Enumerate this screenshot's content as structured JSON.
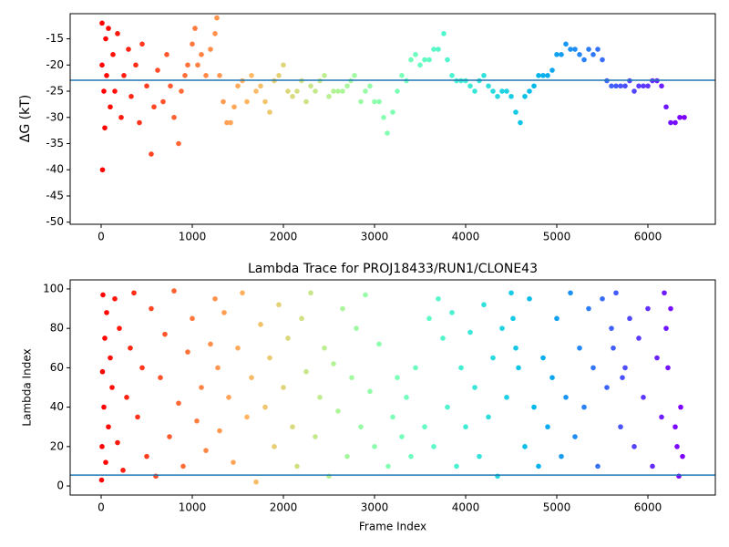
{
  "chart_data": [
    {
      "type": "scatter",
      "ylabel": "ΔG (kT)",
      "colormap": "rainbow_r",
      "xlim": [
        -340,
        6740
      ],
      "ylim": [
        -50.4,
        -10.2
      ],
      "xticks": [
        0,
        1000,
        2000,
        3000,
        4000,
        5000,
        6000
      ],
      "yticks": [
        -50,
        -45,
        -40,
        -35,
        -30,
        -25,
        -20,
        -15
      ],
      "hline": -22.9,
      "hline_color": "#1f77b4",
      "x": [
        10,
        10,
        15,
        30,
        40,
        50,
        60,
        80,
        100,
        130,
        150,
        180,
        220,
        250,
        300,
        330,
        380,
        420,
        450,
        500,
        550,
        580,
        620,
        680,
        720,
        760,
        800,
        850,
        880,
        920,
        950,
        1000,
        1030,
        1060,
        1100,
        1150,
        1200,
        1250,
        1270,
        1300,
        1340,
        1380,
        1420,
        1460,
        1500,
        1550,
        1600,
        1650,
        1700,
        1750,
        1800,
        1850,
        1900,
        1950,
        2000,
        2050,
        2100,
        2150,
        2200,
        2250,
        2300,
        2350,
        2400,
        2450,
        2500,
        2550,
        2600,
        2650,
        2700,
        2740,
        2780,
        2850,
        2900,
        2950,
        3000,
        3050,
        3100,
        3140,
        3200,
        3250,
        3300,
        3350,
        3400,
        3450,
        3500,
        3550,
        3600,
        3650,
        3700,
        3760,
        3800,
        3850,
        3900,
        3950,
        4000,
        4050,
        4100,
        4150,
        4200,
        4250,
        4300,
        4350,
        4400,
        4450,
        4500,
        4550,
        4600,
        4650,
        4700,
        4750,
        4800,
        4850,
        4900,
        4950,
        5000,
        5050,
        5100,
        5150,
        5200,
        5250,
        5300,
        5350,
        5400,
        5450,
        5500,
        5550,
        5600,
        5650,
        5700,
        5750,
        5800,
        5850,
        5900,
        5950,
        6000,
        6050,
        6100,
        6150,
        6200,
        6250,
        6300,
        6350,
        6400
      ],
      "values": [
        -12,
        -20,
        -40,
        -25,
        -32,
        -15,
        -22,
        -13,
        -28,
        -18,
        -25,
        -14,
        -30,
        -22,
        -17,
        -26,
        -20,
        -31,
        -16,
        -24,
        -37,
        -28,
        -21,
        -27,
        -18,
        -24,
        -30,
        -35,
        -25,
        -22,
        -20,
        -16,
        -13,
        -20,
        -18,
        -22,
        -17,
        -14,
        -11,
        -22,
        -27,
        -31,
        -31,
        -28,
        -24,
        -23,
        -27,
        -22,
        -25,
        -24,
        -27,
        -29,
        -23,
        -22,
        -20,
        -25,
        -26,
        -25,
        -23,
        -27,
        -24,
        -25,
        -23,
        -22,
        -26,
        -25,
        -25,
        -25,
        -24,
        -23,
        -22,
        -27,
        -25,
        -24,
        -27,
        -27,
        -30,
        -33,
        -29,
        -25,
        -22,
        -23,
        -19,
        -18,
        -20,
        -19,
        -19,
        -17,
        -17,
        -14,
        -19,
        -22,
        -23,
        -23,
        -23,
        -24,
        -25,
        -23,
        -22,
        -24,
        -25,
        -26,
        -25,
        -25,
        -26,
        -29,
        -31,
        -26,
        -25,
        -24,
        -22,
        -22,
        -22,
        -21,
        -18,
        -18,
        -16,
        -17,
        -17,
        -18,
        -19,
        -17,
        -18,
        -17,
        -19,
        -23,
        -24,
        -24,
        -24,
        -24,
        -23,
        -25,
        -24,
        -24,
        -24,
        -23,
        -23,
        -24,
        -28,
        -31,
        -31,
        -30,
        -30
      ]
    },
    {
      "type": "scatter",
      "title": "Lambda Trace for PROJ18433/RUN1/CLONE43",
      "xlabel": "Frame Index",
      "ylabel": "Lambda Index",
      "colormap": "rainbow_r",
      "xlim": [
        -340,
        6740
      ],
      "ylim": [
        -4.6,
        104.6
      ],
      "xticks": [
        0,
        1000,
        2000,
        3000,
        4000,
        5000,
        6000
      ],
      "yticks": [
        0,
        20,
        40,
        60,
        80,
        100
      ],
      "hline": 5.5,
      "hline_color": "#1f77b4",
      "x": [
        5,
        10,
        15,
        20,
        30,
        40,
        50,
        60,
        80,
        100,
        120,
        150,
        180,
        200,
        240,
        280,
        320,
        360,
        400,
        450,
        500,
        550,
        600,
        650,
        700,
        750,
        800,
        850,
        900,
        950,
        1000,
        1050,
        1100,
        1150,
        1200,
        1250,
        1280,
        1300,
        1350,
        1400,
        1450,
        1500,
        1550,
        1600,
        1650,
        1700,
        1750,
        1800,
        1850,
        1900,
        1950,
        2000,
        2050,
        2100,
        2150,
        2200,
        2250,
        2300,
        2350,
        2400,
        2450,
        2500,
        2550,
        2600,
        2650,
        2700,
        2750,
        2800,
        2850,
        2900,
        2950,
        3000,
        3050,
        3150,
        3200,
        3250,
        3300,
        3350,
        3400,
        3450,
        3550,
        3600,
        3650,
        3700,
        3750,
        3800,
        3850,
        3900,
        3950,
        4000,
        4050,
        4100,
        4150,
        4200,
        4250,
        4300,
        4350,
        4400,
        4450,
        4500,
        4520,
        4550,
        4580,
        4650,
        4700,
        4750,
        4800,
        4850,
        4900,
        4950,
        5000,
        5050,
        5100,
        5150,
        5200,
        5250,
        5300,
        5350,
        5400,
        5450,
        5500,
        5550,
        5600,
        5620,
        5650,
        5700,
        5720,
        5750,
        5800,
        5850,
        5900,
        5950,
        6000,
        6050,
        6100,
        6150,
        6180,
        6200,
        6220,
        6250,
        6300,
        6320,
        6340,
        6360,
        6380
      ],
      "values": [
        3,
        20,
        58,
        97,
        40,
        75,
        12,
        88,
        30,
        65,
        50,
        95,
        22,
        80,
        8,
        45,
        70,
        98,
        35,
        60,
        15,
        90,
        5,
        55,
        77,
        25,
        99,
        42,
        10,
        68,
        85,
        33,
        50,
        18,
        72,
        95,
        60,
        28,
        88,
        45,
        12,
        70,
        98,
        35,
        55,
        2,
        82,
        40,
        65,
        20,
        92,
        50,
        75,
        30,
        10,
        85,
        58,
        98,
        25,
        45,
        70,
        5,
        62,
        38,
        90,
        15,
        55,
        80,
        30,
        97,
        48,
        20,
        72,
        10,
        35,
        55,
        25,
        45,
        15,
        60,
        30,
        85,
        20,
        95,
        75,
        40,
        88,
        10,
        60,
        30,
        78,
        50,
        15,
        92,
        35,
        65,
        5,
        80,
        45,
        98,
        85,
        70,
        60,
        20,
        95,
        40,
        10,
        65,
        30,
        55,
        85,
        15,
        45,
        98,
        25,
        70,
        40,
        90,
        60,
        10,
        95,
        50,
        80,
        70,
        98,
        30,
        55,
        60,
        85,
        20,
        75,
        45,
        90,
        10,
        65,
        35,
        98,
        80,
        60,
        90,
        30,
        20,
        5,
        40,
        15
      ]
    }
  ]
}
